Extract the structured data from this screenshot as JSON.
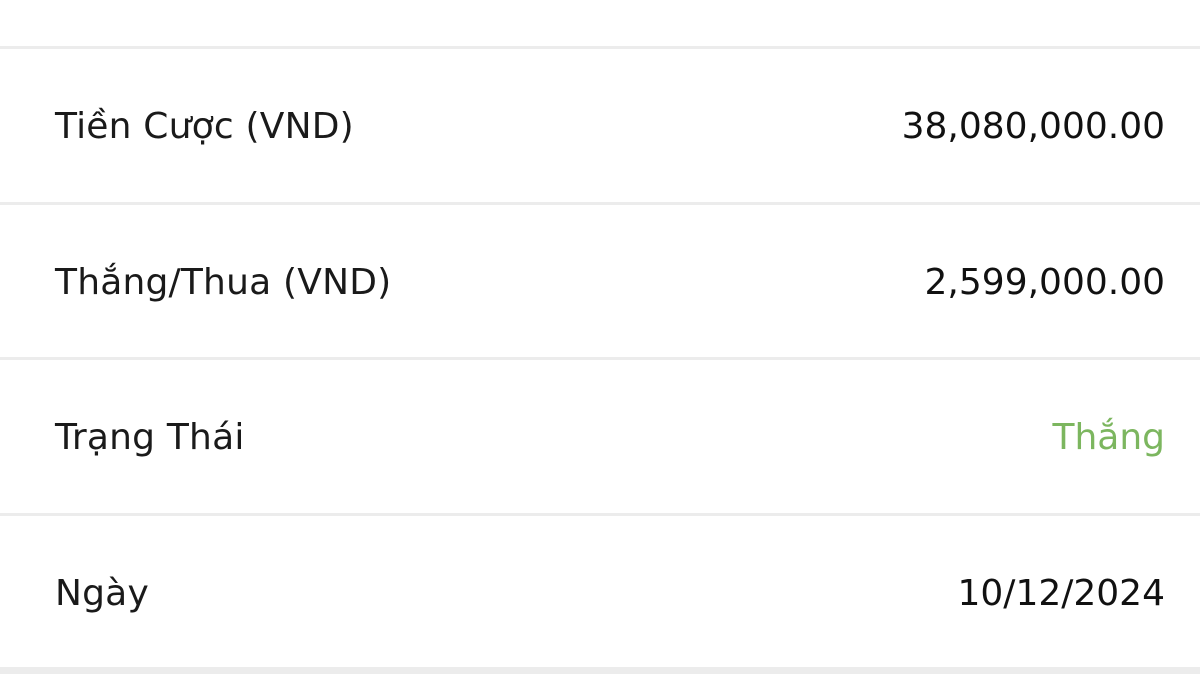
{
  "rows": [
    {
      "label": "Tiền Cược (VND)",
      "value": "38,080,000.00"
    },
    {
      "label": "Thắng/Thua (VND)",
      "value": "2,599,000.00"
    },
    {
      "label": "Trạng Thái",
      "value": "Thắng",
      "value_color": "#7cb65f"
    },
    {
      "label": "Ngày",
      "value": "10/12/2024"
    }
  ]
}
